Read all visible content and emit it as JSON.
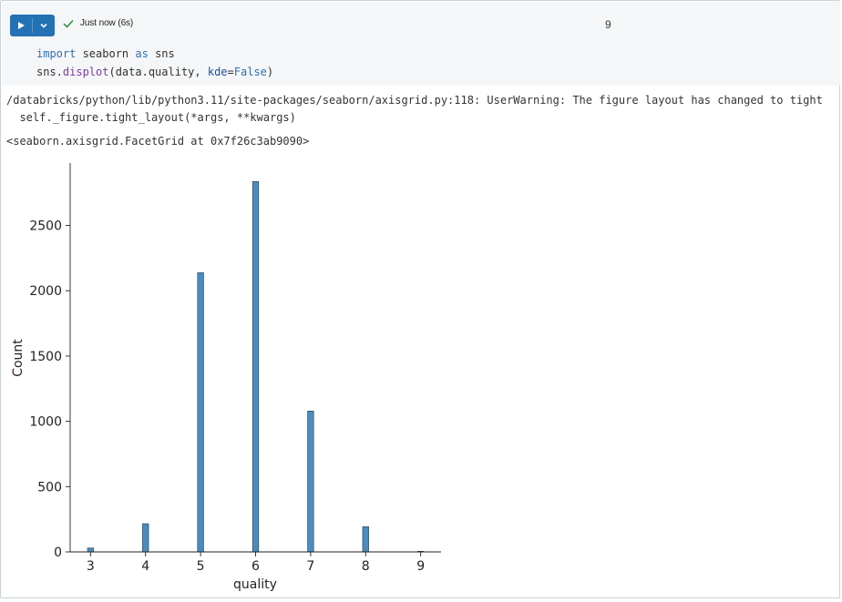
{
  "cell": {
    "status_text": "Just now (6s)",
    "cell_number": "9",
    "run_icon": "play-icon",
    "caret_icon": "chevron-down-icon",
    "status_icon": "check-icon",
    "accent_color": "#2272b4",
    "success_color": "#2d8a3e"
  },
  "code": {
    "line1": {
      "kw1": "import",
      "mod": " seaborn ",
      "kw2": "as",
      "alias": " sns"
    },
    "line2": {
      "obj": "sns.",
      "fn": "displot",
      "open": "(data.quality, ",
      "arg": "kde",
      "eq": "=",
      "val": "False",
      "close": ")"
    }
  },
  "output": {
    "warning_line1": "/databricks/python/lib/python3.11/site-packages/seaborn/axisgrid.py:118: UserWarning: The figure layout has changed to tight",
    "warning_line2": "  self._figure.tight_layout(*args, **kwargs)",
    "repr": "<seaborn.axisgrid.FacetGrid at 0x7f26c3ab9090>"
  },
  "chart_data": {
    "type": "bar",
    "xlabel": "quality",
    "ylabel": "Count",
    "x": [
      3,
      4,
      5,
      6,
      7,
      8,
      9
    ],
    "values": [
      30,
      216,
      2138,
      2836,
      1079,
      193,
      5
    ],
    "xticks": [
      "3",
      "4",
      "5",
      "6",
      "7",
      "8",
      "9"
    ],
    "yticks": [
      "0",
      "500",
      "1000",
      "1500",
      "2000",
      "2500"
    ],
    "ytick_values": [
      0,
      500,
      1000,
      1500,
      2000,
      2500
    ],
    "xlim": [
      2.63,
      9.37
    ],
    "ylim": [
      0,
      2978
    ],
    "bar_color": "#4c8bbd",
    "bar_edge": "#1f3b52"
  }
}
